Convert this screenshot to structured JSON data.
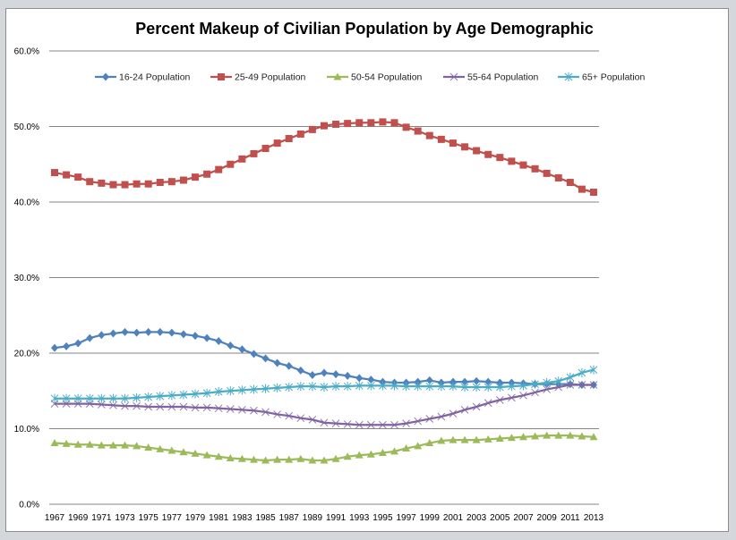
{
  "chart_data": {
    "type": "line",
    "title": "Percent Makeup of Civilian Population by Age Demographic",
    "xlabel": "",
    "ylabel": "",
    "ylim": [
      0,
      60
    ],
    "yticks": [
      "0.0%",
      "10.0%",
      "20.0%",
      "30.0%",
      "40.0%",
      "50.0%",
      "60.0%"
    ],
    "ytick_values": [
      0,
      10,
      20,
      30,
      40,
      50,
      60
    ],
    "grid": true,
    "legend_position": "top",
    "x": [
      1967,
      1968,
      1969,
      1970,
      1971,
      1972,
      1973,
      1974,
      1975,
      1976,
      1977,
      1978,
      1979,
      1980,
      1981,
      1982,
      1983,
      1984,
      1985,
      1986,
      1987,
      1988,
      1989,
      1990,
      1991,
      1992,
      1993,
      1994,
      1995,
      1996,
      1997,
      1998,
      1999,
      2000,
      2001,
      2002,
      2003,
      2004,
      2005,
      2006,
      2007,
      2008,
      2009,
      2010,
      2011,
      2012,
      2013
    ],
    "xtick_labels": [
      "1967",
      "1969",
      "1971",
      "1973",
      "1975",
      "1977",
      "1979",
      "1981",
      "1983",
      "1985",
      "1987",
      "1989",
      "1991",
      "1993",
      "1995",
      "1997",
      "1999",
      "2001",
      "2003",
      "2005",
      "2007",
      "2009",
      "2011",
      "2013"
    ],
    "series": [
      {
        "name": "16-24 Population",
        "color": "#4f81bd",
        "marker": "diamond",
        "values": [
          20.7,
          20.9,
          21.3,
          22.0,
          22.4,
          22.6,
          22.8,
          22.7,
          22.8,
          22.8,
          22.7,
          22.5,
          22.3,
          22.0,
          21.6,
          21.0,
          20.5,
          19.9,
          19.3,
          18.7,
          18.3,
          17.7,
          17.1,
          17.4,
          17.2,
          17.0,
          16.7,
          16.5,
          16.2,
          16.1,
          16.1,
          16.2,
          16.4,
          16.1,
          16.2,
          16.2,
          16.3,
          16.2,
          16.1,
          16.1,
          16.0,
          15.9,
          15.9,
          15.9,
          15.9,
          15.8,
          15.8
        ]
      },
      {
        "name": "25-49 Population",
        "color": "#c0504d",
        "marker": "square",
        "values": [
          43.9,
          43.6,
          43.3,
          42.7,
          42.5,
          42.3,
          42.3,
          42.4,
          42.4,
          42.6,
          42.7,
          42.9,
          43.3,
          43.7,
          44.3,
          45.0,
          45.7,
          46.4,
          47.1,
          47.8,
          48.4,
          49.0,
          49.6,
          50.1,
          50.3,
          50.4,
          50.5,
          50.5,
          50.6,
          50.5,
          49.9,
          49.4,
          48.8,
          48.3,
          47.8,
          47.3,
          46.8,
          46.3,
          45.9,
          45.4,
          44.9,
          44.4,
          43.8,
          43.2,
          42.6,
          41.7,
          41.3
        ]
      },
      {
        "name": "50-54 Population",
        "color": "#9bbb59",
        "marker": "triangle",
        "values": [
          8.1,
          8.0,
          7.9,
          7.9,
          7.8,
          7.8,
          7.8,
          7.7,
          7.5,
          7.3,
          7.1,
          6.9,
          6.7,
          6.5,
          6.3,
          6.1,
          6.0,
          5.9,
          5.8,
          5.9,
          5.9,
          6.0,
          5.8,
          5.8,
          6.0,
          6.3,
          6.5,
          6.6,
          6.8,
          7.0,
          7.4,
          7.7,
          8.1,
          8.4,
          8.5,
          8.5,
          8.5,
          8.6,
          8.7,
          8.8,
          8.9,
          9.0,
          9.1,
          9.1,
          9.1,
          9.0,
          8.9
        ]
      },
      {
        "name": "55-64 Population",
        "color": "#8064a2",
        "marker": "x",
        "values": [
          13.3,
          13.3,
          13.3,
          13.3,
          13.2,
          13.1,
          13.0,
          13.0,
          12.9,
          12.9,
          12.9,
          12.9,
          12.8,
          12.8,
          12.7,
          12.6,
          12.5,
          12.4,
          12.2,
          11.9,
          11.7,
          11.4,
          11.2,
          10.8,
          10.7,
          10.6,
          10.5,
          10.5,
          10.5,
          10.5,
          10.7,
          11.0,
          11.3,
          11.6,
          12.0,
          12.5,
          12.9,
          13.4,
          13.8,
          14.1,
          14.4,
          14.8,
          15.2,
          15.5,
          15.8,
          15.8,
          15.8
        ]
      },
      {
        "name": "65+ Population",
        "color": "#4bacc6",
        "marker": "asterisk",
        "values": [
          14.0,
          14.0,
          14.0,
          14.0,
          14.0,
          14.0,
          14.0,
          14.1,
          14.2,
          14.3,
          14.4,
          14.5,
          14.6,
          14.7,
          14.9,
          15.0,
          15.1,
          15.2,
          15.3,
          15.4,
          15.5,
          15.6,
          15.6,
          15.5,
          15.6,
          15.6,
          15.7,
          15.7,
          15.7,
          15.7,
          15.6,
          15.6,
          15.6,
          15.6,
          15.6,
          15.5,
          15.5,
          15.5,
          15.5,
          15.6,
          15.7,
          15.9,
          16.1,
          16.3,
          16.8,
          17.4,
          17.8
        ]
      }
    ]
  }
}
